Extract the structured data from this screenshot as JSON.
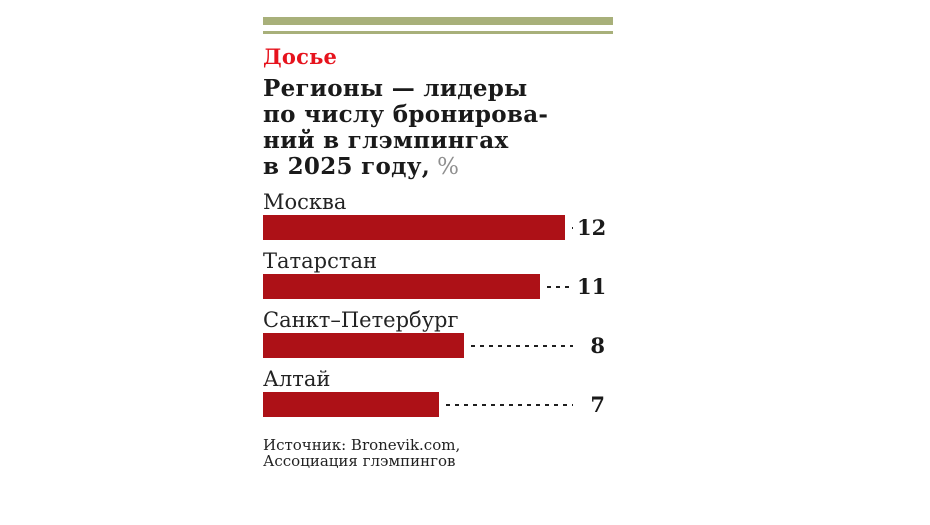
{
  "page": {
    "background": "#ffffff"
  },
  "header": {
    "kicker": "Досье",
    "title_lines": [
      "Регионы — лидеры",
      "по числу бронирова-",
      "ний в глэмпингах",
      "в 2025 году,"
    ],
    "unit": "%"
  },
  "chart_data": {
    "type": "bar",
    "orientation": "horizontal",
    "title": "Регионы — лидеры по числу бронирований в глэмпингах в 2025 году",
    "unit": "%",
    "categories": [
      "Москва",
      "Татарстан",
      "Санкт–Петербург",
      "Алтай"
    ],
    "values": [
      12,
      11,
      8,
      7
    ],
    "value_labels": [
      "12",
      "11",
      "8",
      "7"
    ],
    "xlim": [
      0,
      12
    ],
    "bar_color": "#ad1117",
    "leader_style": "dashed",
    "legend": "none",
    "grid": "off"
  },
  "source": {
    "line1": "Источник: Bronevik.com,",
    "line2": "Ассоциация глэмпингов"
  },
  "colors": {
    "accent_red": "#e6131d",
    "bar_red": "#ad1117",
    "olive_rule": "#a8b07a",
    "text": "#1a1a1a",
    "unit_gray": "#8f8f8f"
  }
}
